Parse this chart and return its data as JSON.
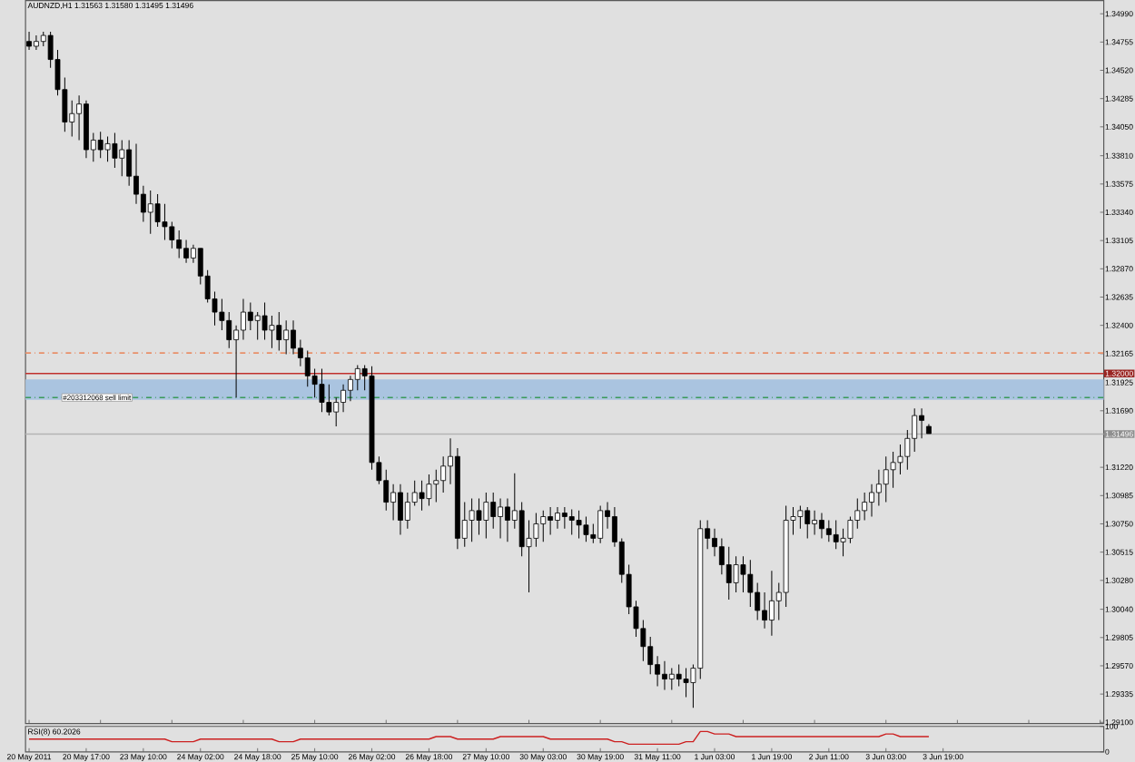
{
  "chart_data": [
    {
      "type": "candlestick",
      "title": "AUDNZD,H1  1.31563 1.31580 1.31495 1.31496",
      "color": "#000000",
      "categories": [
        null,
        null,
        null,
        null,
        null,
        null,
        null,
        null,
        null,
        null,
        null,
        null,
        null,
        null,
        null,
        null,
        null,
        null,
        null,
        null,
        null,
        null,
        null,
        null,
        null,
        null,
        null,
        null,
        null,
        null,
        null,
        null,
        null,
        null,
        null,
        null,
        null,
        null,
        null,
        null,
        null,
        null,
        null,
        null,
        null,
        null,
        null,
        null,
        null,
        null,
        null,
        null,
        null,
        null,
        null,
        null,
        null,
        null,
        null,
        null,
        null,
        null,
        null,
        null,
        null,
        null,
        null,
        null,
        null,
        null,
        null,
        null,
        null,
        null,
        null,
        null,
        null,
        null,
        null,
        null,
        null,
        null,
        null,
        null,
        null,
        null,
        null,
        null,
        null,
        null,
        null,
        null,
        null,
        null,
        null,
        null,
        null,
        null,
        null,
        null,
        null,
        null,
        null,
        null,
        null,
        null,
        null,
        null,
        null,
        null,
        null,
        null,
        null,
        null,
        null,
        null,
        null,
        null,
        null,
        null,
        null,
        null,
        null,
        null,
        null,
        null,
        null,
        null,
        null,
        null,
        null,
        null,
        null,
        null,
        null,
        null,
        null,
        null,
        null,
        null,
        null,
        null,
        null,
        null,
        null,
        null,
        null,
        null,
        null,
        null,
        null
      ],
      "ohlc": [
        [
          1.3476,
          1.3484,
          1.3469,
          1.3472
        ],
        [
          1.3472,
          1.3481,
          1.3469,
          1.3476
        ],
        [
          1.3476,
          1.3484,
          1.3472,
          1.3481
        ],
        [
          1.3481,
          1.3484,
          1.3454,
          1.3461
        ],
        [
          1.3461,
          1.3469,
          1.3431,
          1.3436
        ],
        [
          1.3436,
          1.3446,
          1.3401,
          1.3409
        ],
        [
          1.3409,
          1.3427,
          1.3397,
          1.3416
        ],
        [
          1.3416,
          1.3431,
          1.3394,
          1.3424
        ],
        [
          1.3424,
          1.3427,
          1.3379,
          1.3386
        ],
        [
          1.3386,
          1.34,
          1.3376,
          1.3394
        ],
        [
          1.3394,
          1.3401,
          1.3379,
          1.3386
        ],
        [
          1.3386,
          1.3397,
          1.3376,
          1.3391
        ],
        [
          1.3391,
          1.34,
          1.3371,
          1.3379
        ],
        [
          1.3379,
          1.3394,
          1.3364,
          1.3386
        ],
        [
          1.3386,
          1.3394,
          1.3356,
          1.3364
        ],
        [
          1.3364,
          1.3391,
          1.3341,
          1.3349
        ],
        [
          1.3349,
          1.3356,
          1.3326,
          1.3334
        ],
        [
          1.3334,
          1.3352,
          1.3316,
          1.3341
        ],
        [
          1.3341,
          1.3349,
          1.3322,
          1.3326
        ],
        [
          1.3326,
          1.3341,
          1.3311,
          1.3322
        ],
        [
          1.3322,
          1.3326,
          1.3304,
          1.3311
        ],
        [
          1.3311,
          1.3319,
          1.3296,
          1.3304
        ],
        [
          1.3304,
          1.3311,
          1.3292,
          1.3296
        ],
        [
          1.3296,
          1.3307,
          1.3292,
          1.3304
        ],
        [
          1.3304,
          1.3304,
          1.3274,
          1.3281
        ],
        [
          1.3281,
          1.3286,
          1.3259,
          1.3262
        ],
        [
          1.3262,
          1.3268,
          1.324,
          1.3251
        ],
        [
          1.3251,
          1.3262,
          1.3236,
          1.3244
        ],
        [
          1.3244,
          1.3251,
          1.3221,
          1.3228
        ],
        [
          1.3228,
          1.324,
          1.318,
          1.3236
        ],
        [
          1.3236,
          1.3262,
          1.3228,
          1.3251
        ],
        [
          1.3251,
          1.3259,
          1.3236,
          1.3244
        ],
        [
          1.3244,
          1.3251,
          1.3228,
          1.3248
        ],
        [
          1.3248,
          1.3259,
          1.3228,
          1.3236
        ],
        [
          1.3236,
          1.3248,
          1.3221,
          1.324
        ],
        [
          1.324,
          1.3251,
          1.3219,
          1.3228
        ],
        [
          1.3228,
          1.3244,
          1.3216,
          1.3236
        ],
        [
          1.3236,
          1.3244,
          1.3216,
          1.3221
        ],
        [
          1.3221,
          1.3228,
          1.3206,
          1.3213
        ],
        [
          1.3213,
          1.3219,
          1.3189,
          1.3198
        ],
        [
          1.3198,
          1.3204,
          1.318,
          1.3191
        ],
        [
          1.3191,
          1.3204,
          1.3168,
          1.3176
        ],
        [
          1.3176,
          1.3191,
          1.3165,
          1.3168
        ],
        [
          1.3168,
          1.318,
          1.3156,
          1.3176
        ],
        [
          1.3176,
          1.3191,
          1.3168,
          1.3186
        ],
        [
          1.3186,
          1.3198,
          1.3177,
          1.3195
        ],
        [
          1.3195,
          1.3207,
          1.3186,
          1.3204
        ],
        [
          1.3204,
          1.3207,
          1.3186,
          1.3198
        ],
        [
          1.3198,
          1.3206,
          1.312,
          1.3126
        ],
        [
          1.3126,
          1.3131,
          1.3108,
          1.3111
        ],
        [
          1.3111,
          1.312,
          1.3086,
          1.3093
        ],
        [
          1.3093,
          1.3108,
          1.3078,
          1.3101
        ],
        [
          1.3101,
          1.3108,
          1.3066,
          1.3078
        ],
        [
          1.3078,
          1.3101,
          1.3071,
          1.3093
        ],
        [
          1.3093,
          1.3111,
          1.309,
          1.3101
        ],
        [
          1.3101,
          1.3111,
          1.3086,
          1.3096
        ],
        [
          1.3096,
          1.3116,
          1.309,
          1.3108
        ],
        [
          1.3108,
          1.312,
          1.3093,
          1.3111
        ],
        [
          1.3111,
          1.3131,
          1.3101,
          1.3123
        ],
        [
          1.3123,
          1.3146,
          1.3108,
          1.3131
        ],
        [
          1.3131,
          1.3138,
          1.3054,
          1.3063
        ],
        [
          1.3063,
          1.3093,
          1.3056,
          1.3078
        ],
        [
          1.3078,
          1.3096,
          1.306,
          1.3086
        ],
        [
          1.3086,
          1.3096,
          1.3066,
          1.3078
        ],
        [
          1.3078,
          1.3101,
          1.3063,
          1.3093
        ],
        [
          1.3093,
          1.3101,
          1.3071,
          1.3081
        ],
        [
          1.3081,
          1.3096,
          1.3063,
          1.3089
        ],
        [
          1.3089,
          1.3096,
          1.306,
          1.3078
        ],
        [
          1.3078,
          1.3117,
          1.3071,
          1.3086
        ],
        [
          1.3086,
          1.3093,
          1.3048,
          1.3056
        ],
        [
          1.3056,
          1.3078,
          1.3018,
          1.3063
        ],
        [
          1.3063,
          1.3084,
          1.3056,
          1.3075
        ],
        [
          1.3075,
          1.3086,
          1.306,
          1.3081
        ],
        [
          1.3081,
          1.3089,
          1.3066,
          1.3078
        ],
        [
          1.3078,
          1.3089,
          1.3071,
          1.3084
        ],
        [
          1.3084,
          1.3089,
          1.3071,
          1.3081
        ],
        [
          1.3081,
          1.3087,
          1.3066,
          1.3078
        ],
        [
          1.3078,
          1.3086,
          1.3063,
          1.3074
        ],
        [
          1.3074,
          1.3081,
          1.306,
          1.3066
        ],
        [
          1.3066,
          1.3075,
          1.3059,
          1.3063
        ],
        [
          1.3063,
          1.309,
          1.3059,
          1.3086
        ],
        [
          1.3086,
          1.3093,
          1.3071,
          1.3081
        ],
        [
          1.3081,
          1.3089,
          1.3056,
          1.306
        ],
        [
          1.306,
          1.3063,
          1.3026,
          1.3033
        ],
        [
          1.3033,
          1.3041,
          1.3,
          1.3006
        ],
        [
          1.3006,
          1.3011,
          1.2981,
          1.2988
        ],
        [
          1.2988,
          1.2995,
          1.2961,
          1.2973
        ],
        [
          1.2973,
          1.2981,
          1.295,
          1.2958
        ],
        [
          1.2958,
          1.2965,
          1.294,
          1.295
        ],
        [
          1.295,
          1.2961,
          1.2937,
          1.2946
        ],
        [
          1.2946,
          1.2955,
          1.2937,
          1.295
        ],
        [
          1.295,
          1.2958,
          1.294,
          1.2946
        ],
        [
          1.2946,
          1.2955,
          1.2931,
          1.2943
        ],
        [
          1.2943,
          1.2958,
          1.2922,
          1.2955
        ],
        [
          1.2955,
          1.3078,
          1.2946,
          1.3071
        ],
        [
          1.3071,
          1.3078,
          1.3054,
          1.3063
        ],
        [
          1.3063,
          1.3071,
          1.3048,
          1.3056
        ],
        [
          1.3056,
          1.3063,
          1.3033,
          1.3041
        ],
        [
          1.3041,
          1.3056,
          1.3012,
          1.3026
        ],
        [
          1.3026,
          1.3048,
          1.3018,
          1.3041
        ],
        [
          1.3041,
          1.3048,
          1.3018,
          1.3033
        ],
        [
          1.3033,
          1.3045,
          1.3006,
          1.3018
        ],
        [
          1.3018,
          1.3026,
          1.2995,
          1.3003
        ],
        [
          1.3003,
          1.3018,
          1.2988,
          1.2995
        ],
        [
          1.2995,
          1.3036,
          1.2982,
          1.3011
        ],
        [
          1.3011,
          1.3026,
          1.2995,
          1.3018
        ],
        [
          1.3018,
          1.309,
          1.3006,
          1.3078
        ],
        [
          1.3078,
          1.3089,
          1.3066,
          1.3081
        ],
        [
          1.3081,
          1.309,
          1.3071,
          1.3086
        ],
        [
          1.3086,
          1.3089,
          1.3063,
          1.3075
        ],
        [
          1.3075,
          1.3086,
          1.3066,
          1.3078
        ],
        [
          1.3078,
          1.3084,
          1.3063,
          1.3071
        ],
        [
          1.3071,
          1.3078,
          1.306,
          1.3066
        ],
        [
          1.3066,
          1.3078,
          1.3054,
          1.306
        ],
        [
          1.306,
          1.3071,
          1.3048,
          1.3063
        ],
        [
          1.3063,
          1.3081,
          1.3059,
          1.3078
        ],
        [
          1.3078,
          1.3096,
          1.3071,
          1.3086
        ],
        [
          1.3086,
          1.3101,
          1.3078,
          1.3093
        ],
        [
          1.3093,
          1.3108,
          1.3081,
          1.3101
        ],
        [
          1.3101,
          1.312,
          1.309,
          1.3108
        ],
        [
          1.3108,
          1.3131,
          1.3093,
          1.312
        ],
        [
          1.312,
          1.3135,
          1.3105,
          1.3126
        ],
        [
          1.3126,
          1.3141,
          1.3116,
          1.3131
        ],
        [
          1.3131,
          1.3153,
          1.312,
          1.3146
        ],
        [
          1.3146,
          1.3171,
          1.3135,
          1.3165
        ],
        [
          1.3165,
          1.3171,
          1.3146,
          1.3161
        ],
        [
          1.3156,
          1.3158,
          1.315,
          1.315
        ],
        null,
        null,
        null,
        null,
        null,
        null,
        null,
        null,
        null,
        null,
        null,
        null,
        null,
        null,
        null,
        null,
        null,
        null,
        null,
        null,
        null,
        null,
        null,
        null
      ],
      "ylim": [
        1.2909,
        1.351
      ],
      "yticks": [
        {
          "value": 1.3499,
          "label": "1.34990"
        },
        {
          "value": 1.34755,
          "label": "1.34755"
        },
        {
          "value": 1.3452,
          "label": "1.34520"
        },
        {
          "value": 1.34285,
          "label": "1.34285"
        },
        {
          "value": 1.3405,
          "label": "1.34050"
        },
        {
          "value": 1.3381,
          "label": "1.33810"
        },
        {
          "value": 1.33575,
          "label": "1.33575"
        },
        {
          "value": 1.3334,
          "label": "1.33340"
        },
        {
          "value": 1.33105,
          "label": "1.33105"
        },
        {
          "value": 1.3287,
          "label": "1.32870"
        },
        {
          "value": 1.32635,
          "label": "1.32635"
        },
        {
          "value": 1.324,
          "label": "1.32400"
        },
        {
          "value": 1.32165,
          "label": "1.32165"
        },
        {
          "value": 1.31925,
          "label": "1.31925"
        },
        {
          "value": 1.3169,
          "label": "1.31690"
        },
        {
          "value": 1.3122,
          "label": "1.31220"
        },
        {
          "value": 1.30985,
          "label": "1.30985"
        },
        {
          "value": 1.3075,
          "label": "1.30750"
        },
        {
          "value": 1.30515,
          "label": "1.30515"
        },
        {
          "value": 1.3028,
          "label": "1.30280"
        },
        {
          "value": 1.3004,
          "label": "1.30040"
        },
        {
          "value": 1.29805,
          "label": "1.29805"
        },
        {
          "value": 1.2957,
          "label": "1.29570"
        },
        {
          "value": 1.29335,
          "label": "1.29335"
        },
        {
          "value": 1.291,
          "label": "1.29100"
        }
      ],
      "tick_labels": "y",
      "bands": [
        {
          "axis": "y",
          "from": 1.3178,
          "to": 1.3195,
          "color": "#aac4e0"
        }
      ],
      "ref_lines": [
        {
          "axis": "y",
          "value": 1.3217,
          "color": "#e8906a",
          "line_style": "dashed"
        },
        {
          "axis": "y",
          "value": 1.32,
          "label": "1.32000",
          "color": "#c0302c",
          "line_style": "solid"
        },
        {
          "axis": "y",
          "value": 1.318,
          "label": "#203312068 sell limit",
          "color": "#3a9a5a",
          "line_style": "dashed"
        },
        {
          "axis": "y",
          "value": 1.31496,
          "label": "1.31496",
          "color": "#b4b4b4",
          "line_style": "solid"
        }
      ]
    },
    {
      "type": "line",
      "title": "RSI(8) 60.2026",
      "color": "#cc2020",
      "categories": [
        "20 May 2011",
        null,
        null,
        null,
        null,
        null,
        null,
        null,
        "20 May 17:00",
        null,
        null,
        null,
        null,
        null,
        null,
        null,
        "23 May 10:00",
        null,
        null,
        null,
        null,
        null,
        null,
        null,
        "24 May 02:00",
        null,
        null,
        null,
        null,
        null,
        null,
        null,
        "24 May 18:00",
        null,
        null,
        null,
        null,
        null,
        null,
        null,
        "25 May 10:00",
        null,
        null,
        null,
        null,
        null,
        null,
        null,
        "26 May 02:00",
        null,
        null,
        null,
        null,
        null,
        null,
        null,
        "26 May 18:00",
        null,
        null,
        null,
        null,
        null,
        null,
        null,
        "27 May 10:00",
        null,
        null,
        null,
        null,
        null,
        null,
        null,
        "30 May 03:00",
        null,
        null,
        null,
        null,
        null,
        null,
        null,
        "30 May 19:00",
        null,
        null,
        null,
        null,
        null,
        null,
        null,
        "31 May 11:00",
        null,
        null,
        null,
        null,
        null,
        null,
        null,
        "1 Jun 03:00",
        null,
        null,
        null,
        null,
        null,
        null,
        null,
        "1 Jun 19:00",
        null,
        null,
        null,
        null,
        null,
        null,
        null,
        "2 Jun 11:00",
        null,
        null,
        null,
        null,
        null,
        null,
        null,
        "3 Jun 03:00",
        null,
        null,
        null,
        null,
        null,
        null,
        null,
        "3 Jun 19:00",
        null,
        null,
        null,
        null,
        null,
        null,
        null,
        null,
        null,
        null,
        null,
        null,
        null,
        null,
        null,
        null,
        null,
        null,
        null,
        null,
        null,
        null
      ],
      "values": [
        50,
        50,
        50,
        50,
        50,
        50,
        50,
        50,
        50,
        50,
        50,
        50,
        50,
        50,
        50,
        50,
        50,
        50,
        50,
        50,
        40,
        40,
        40,
        40,
        50,
        50,
        50,
        50,
        50,
        50,
        50,
        50,
        50,
        50,
        50,
        40,
        40,
        40,
        50,
        50,
        50,
        50,
        50,
        50,
        50,
        50,
        50,
        50,
        50,
        50,
        50,
        50,
        50,
        50,
        50,
        50,
        50,
        60,
        60,
        60,
        50,
        50,
        50,
        50,
        50,
        50,
        60,
        60,
        60,
        60,
        60,
        60,
        60,
        50,
        50,
        50,
        50,
        50,
        50,
        50,
        50,
        50,
        40,
        40,
        30,
        30,
        30,
        30,
        30,
        30,
        30,
        30,
        40,
        40,
        80,
        80,
        70,
        70,
        70,
        60,
        60,
        60,
        60,
        60,
        60,
        60,
        60,
        60,
        60,
        60,
        60,
        60,
        60,
        60,
        60,
        60,
        60,
        60,
        60,
        60,
        70,
        70,
        60,
        60,
        60,
        60,
        60,
        null,
        null,
        null,
        null,
        null,
        null,
        null,
        null,
        null,
        null,
        null,
        null,
        null,
        null,
        null,
        null,
        null,
        null,
        null,
        null,
        null,
        null,
        null,
        null
      ],
      "ylim": [
        0,
        100
      ],
      "yticks": [
        100,
        0
      ]
    }
  ]
}
